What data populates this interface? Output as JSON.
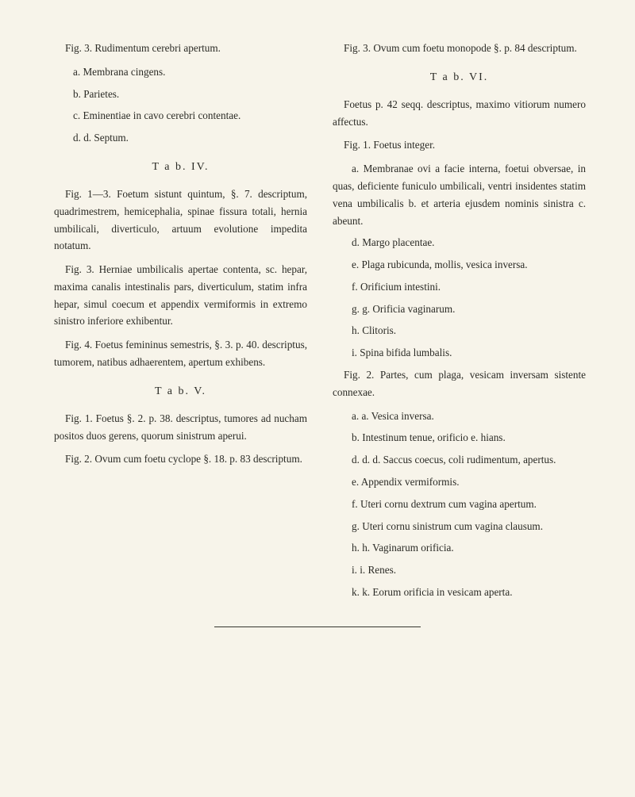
{
  "background_color": "#f7f4ea",
  "text_color": "#2b2b26",
  "font_family": "Georgia, Times New Roman, serif",
  "base_font_size": 13.2,
  "line_height": 1.65,
  "left": {
    "p1": "Fig. 3.  Rudimentum cerebri apertum.",
    "p1a": "a. Membrana cingens.",
    "p1b": "b. Parietes.",
    "p1c": "c. Eminentiae in cavo cerebri contentae.",
    "p1d": "d. d. Septum.",
    "tab4": "T a b.  IV.",
    "p2": "Fig. 1—3.  Foetum sistunt quintum, §. 7. de­scriptum, quadrimestrem, hemicephalia, spinae fis­sura totali, hernia umbilicali, diverticulo, artuum evolutione impedita notatum.",
    "p3": "Fig. 3.  Herniae umbilicalis apertae contenta, sc. hepar, maxima canalis intestinalis pars, diverticu­lum, statim infra hepar, simul coecum et appen­dix vermiformis in extremo sinistro inferiore exhi­bentur.",
    "p4": "Fig. 4.  Foetus femininus semestris, §. 3. p. 40. descriptus, tumorem, natibus adhaerentem, aper­tum exhibens.",
    "tab5": "T a b.  V.",
    "p5": "Fig. 1.  Foetus §. 2. p. 38. descriptus, tumo­res ad nucham positos duos gerens, quorum sini­strum aperui.",
    "p6": "Fig. 2.  Ovum cum foetu cyclope §. 18. p. 83 descriptum."
  },
  "right": {
    "p1": "Fig. 3.  Ovum cum foetu monopode §. p. 84 descriptum.",
    "tab6": "T a b.  VI.",
    "p2": "Foetus p. 42 seqq. descriptus, maximo vitiorum numero affectus.",
    "p3": "Fig. 1.  Foetus integer.",
    "p3a": "a. Membranae ovi a facie interna, foetui ob­versae, in quas, deficiente funiculo umbilicali, ven­tri insidentes statim vena umbilicalis b. et arteria ejusdem nominis sinistra c. abeunt.",
    "p3d": "d. Margo placentae.",
    "p3e": "e. Plaga rubicunda, mollis, vesica inversa.",
    "p3f": "f. Orificium intestini.",
    "p3g": "g. g. Orificia vaginarum.",
    "p3h": "h. Clitoris.",
    "p3i": "i. Spina bifida lumbalis.",
    "p4": "Fig. 2.  Partes, cum plaga, vesicam inversam sistente connexae.",
    "p4a": "a. a. Vesica inversa.",
    "p4b": "b. Intestinum tenue, orificio e. hians.",
    "p4d": "d. d. d. Saccus coecus, coli rudimentum, apertus.",
    "p4e": "e. Appendix vermiformis.",
    "p4f": "f. Uteri cornu dextrum cum vagina apertum.",
    "p4g": "g. Uteri cornu sinistrum cum vagina clausum.",
    "p4h": "h. h. Vaginarum orificia.",
    "p4i": "i. i. Renes.",
    "p4k": "k. k. Eorum orificia in vesicam aperta."
  }
}
